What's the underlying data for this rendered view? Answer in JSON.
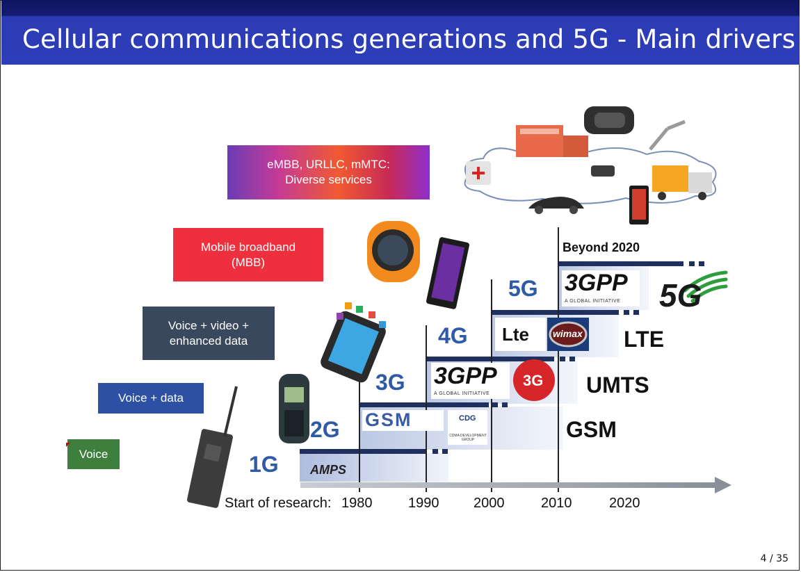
{
  "slide": {
    "title": "Cellular communications generations and 5G - Main drivers",
    "page": "4 / 35"
  },
  "services": [
    {
      "line1": "eMBB, URLLC, mMTC:",
      "line2": "Diverse services"
    },
    {
      "line1": "Mobile broadband",
      "line2": "(MBB)"
    },
    {
      "line1": "Voice + video +",
      "line2": "enhanced data"
    },
    {
      "line1": "Voice + data",
      "line2": ""
    },
    {
      "line1": "Voice",
      "line2": ""
    }
  ],
  "generations": [
    "1G",
    "2G",
    "3G",
    "4G",
    "5G"
  ],
  "standards": [
    "AMPS",
    "GSM",
    "UMTS",
    "LTE"
  ],
  "timeline": {
    "start_label": "Start of research:",
    "years": [
      "1980",
      "1990",
      "2000",
      "2010",
      "2020"
    ],
    "beyond": "Beyond 2020"
  },
  "logos": {
    "gsm": "GSM",
    "cdg": "CDG",
    "cdg_sub": "CDMA DEVELOPMENT GROUP",
    "tgpp": "3GPP",
    "tgpp_sub": "A GLOBAL INITIATIVE",
    "threeg": "3G",
    "lte": "Lte",
    "wimax": "wimax",
    "fiveg": "5G"
  },
  "colors": {
    "title_bar": "#2c3eb8",
    "bar_dark": "#1f2f5e",
    "gen_text": "#2e5aa8"
  }
}
